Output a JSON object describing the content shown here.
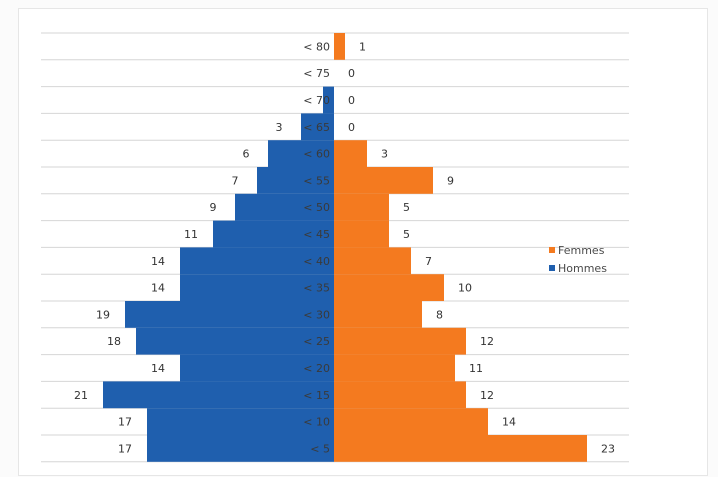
{
  "chart_data": {
    "type": "bar",
    "orientation": "horizontal",
    "layout": "population-pyramid",
    "categories": [
      "< 80",
      "< 75",
      "< 70",
      "< 65",
      "< 60",
      "< 55",
      "< 50",
      "< 45",
      "< 40",
      "< 35",
      "< 30",
      "< 25",
      "< 20",
      "< 15",
      "< 10",
      "< 5"
    ],
    "category_labels_drawn": [
      "< 80",
      "< 75",
      "< 70",
      "< 65",
      "< 60",
      "< 55",
      "< 50",
      "< 45",
      "< 40",
      "< 35",
      "< 30",
      "< 25",
      "< 20",
      "< 15",
      "< 10",
      "< 5"
    ],
    "series": [
      {
        "name": "Femmes",
        "side": "right",
        "color": "#f47a1f",
        "values": [
          1,
          0,
          0,
          0,
          3,
          9,
          5,
          5,
          7,
          10,
          8,
          12,
          11,
          12,
          14,
          23
        ],
        "value_labels": [
          "1",
          "0",
          "0",
          "0",
          "3",
          "9",
          "5",
          "5",
          "7",
          "10",
          "8",
          "12",
          "11",
          "12",
          "14",
          "23"
        ]
      },
      {
        "name": "Hommes",
        "side": "left",
        "color": "#1f5fae",
        "values": [
          0,
          0,
          1,
          3,
          6,
          7,
          9,
          11,
          14,
          14,
          19,
          18,
          14,
          21,
          17,
          17
        ],
        "value_labels": [
          "",
          "",
          "",
          "3",
          "6",
          "7",
          "9",
          "11",
          "14",
          "14",
          "19",
          "18",
          "14",
          "21",
          "17",
          "17"
        ]
      }
    ],
    "title": "",
    "xlabel": "",
    "ylabel": "",
    "xlim": [
      -25,
      25
    ],
    "grid": true,
    "legend": {
      "position": "right",
      "entries": [
        "Femmes",
        "Hommes"
      ]
    }
  }
}
